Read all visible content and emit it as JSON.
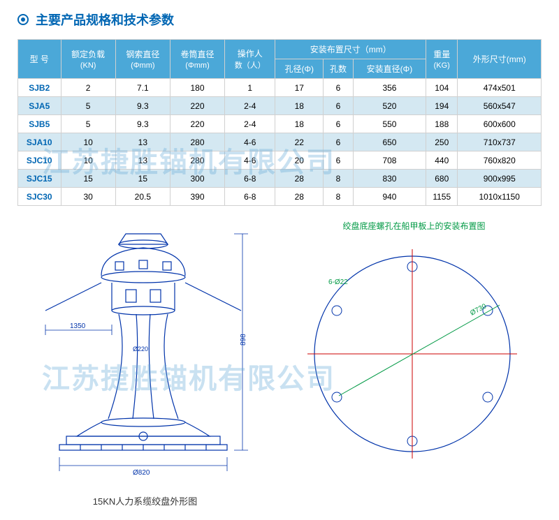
{
  "title": "主要产品规格和技术参数",
  "table": {
    "header_row1": {
      "model": "型 号",
      "load": "额定负载",
      "load_sub": "(KN)",
      "rope": "钢索直径",
      "rope_sub": "(Φmm)",
      "drum": "卷筒直径",
      "drum_sub": "(Φmm)",
      "operators": "操作人",
      "operators_sub": "数（人）",
      "install": "安装布置尺寸（mm）",
      "weight": "重量",
      "weight_sub": "(KG)",
      "outer": "外形尺寸(mm)"
    },
    "header_row2": {
      "hole_dia": "孔径(Φ)",
      "hole_num": "孔数",
      "install_dia": "安装直径(Φ)"
    },
    "rows": [
      {
        "model": "SJB2",
        "load": "2",
        "rope": "7.1",
        "drum": "180",
        "ops": "1",
        "hd": "17",
        "hn": "6",
        "id": "356",
        "wt": "104",
        "od": "474x501",
        "alt": false
      },
      {
        "model": "SJA5",
        "load": "5",
        "rope": "9.3",
        "drum": "220",
        "ops": "2-4",
        "hd": "18",
        "hn": "6",
        "id": "520",
        "wt": "194",
        "od": "560x547",
        "alt": true
      },
      {
        "model": "SJB5",
        "load": "5",
        "rope": "9.3",
        "drum": "220",
        "ops": "2-4",
        "hd": "18",
        "hn": "6",
        "id": "550",
        "wt": "188",
        "od": "600x600",
        "alt": false
      },
      {
        "model": "SJA10",
        "load": "10",
        "rope": "13",
        "drum": "280",
        "ops": "4-6",
        "hd": "22",
        "hn": "6",
        "id": "650",
        "wt": "250",
        "od": "710x737",
        "alt": true
      },
      {
        "model": "SJC10",
        "load": "10",
        "rope": "13",
        "drum": "280",
        "ops": "4-6",
        "hd": "20",
        "hn": "6",
        "id": "708",
        "wt": "440",
        "od": "760x820",
        "alt": false
      },
      {
        "model": "SJC15",
        "load": "15",
        "rope": "15",
        "drum": "300",
        "ops": "6-8",
        "hd": "28",
        "hn": "8",
        "id": "830",
        "wt": "680",
        "od": "900x995",
        "alt": true
      },
      {
        "model": "SJC30",
        "load": "30",
        "rope": "20.5",
        "drum": "390",
        "ops": "6-8",
        "hd": "28",
        "hn": "8",
        "id": "940",
        "wt": "1155",
        "od": "1010x1150",
        "alt": false
      }
    ]
  },
  "watermark": "江苏捷胜锚机有限公司",
  "caption_left": "15KN人力系缆绞盘外形图",
  "right_title": "绞盘底座螺孔在船甲板上的安装布置图",
  "colors": {
    "header_bg": "#4ba8d8",
    "alt_row": "#d4e8f2",
    "title": "#0066b3",
    "green": "#009944"
  },
  "diagram_left": {
    "dim_1350": "1350",
    "dim_820": "Ø820",
    "dim_220": "Ø220",
    "height_dim": "898"
  },
  "diagram_right": {
    "hole_count": 6,
    "hole_label": "6-Ø22",
    "diameter": "Ø730"
  }
}
